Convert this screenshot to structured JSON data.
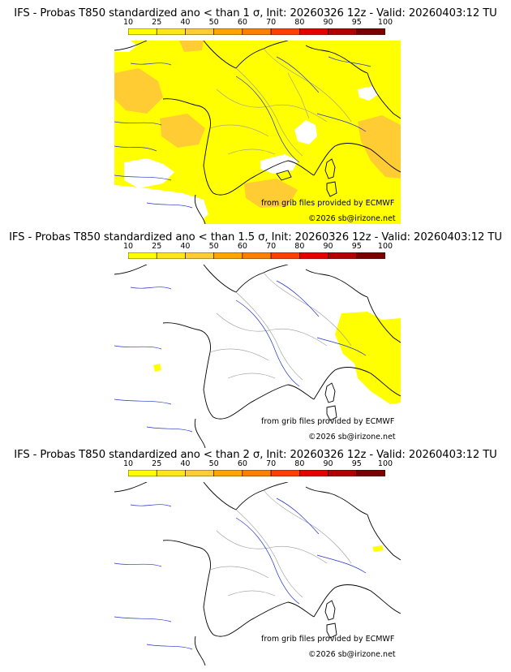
{
  "colorbar": {
    "ticks": [
      "10",
      "25",
      "40",
      "50",
      "60",
      "70",
      "80",
      "90",
      "95",
      "100"
    ],
    "colors": [
      "#ffff00",
      "#ffe61a",
      "#ffcc33",
      "#ffa500",
      "#ff8000",
      "#ff4000",
      "#e60000",
      "#b30000",
      "#7a0000"
    ]
  },
  "panels": [
    {
      "title": "IFS - Probas T850  standardized ano < than 1 σ, Init: 20260326 12z - Valid: 20260403:12 TU",
      "source": "from grib files provided by ECMWF",
      "copyright": "©2026 sb@irizone.net",
      "probability_fill": "widespread 10-40% over most of domain, 40-50% patches SE and W"
    },
    {
      "title": "IFS - Probas T850  standardized ano < than 1.5 σ, Init: 20260326 12z - Valid: 20260403:12 TU",
      "source": "from grib files provided by ECMWF",
      "copyright": "©2026 sb@irizone.net",
      "probability_fill": "10-25% over Alps and Italy only"
    },
    {
      "title": "IFS - Probas T850  standardized ano < than 2 σ, Init: 20260326 12z - Valid: 20260403:12 TU",
      "source": "from grib files provided by ECMWF",
      "copyright": "©2026 sb@irizone.net",
      "probability_fill": "tiny 10-25% spot near Alps"
    }
  ]
}
